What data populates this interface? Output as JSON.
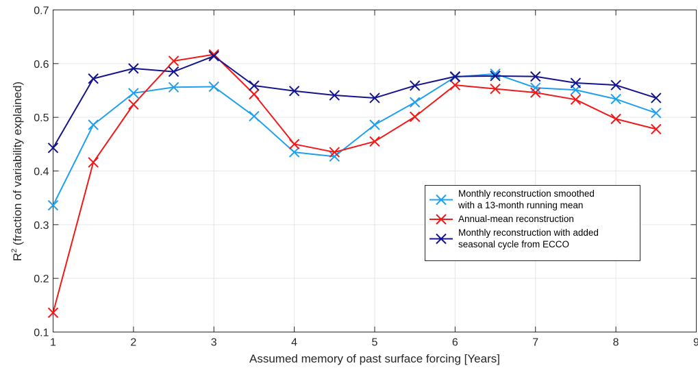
{
  "chart_data": {
    "type": "line",
    "title": "",
    "xlabel": "Assumed memory of past surface forcing [Years]",
    "ylabel": {
      "prefix": "R",
      "superscript": "2",
      "suffix": " (fraction of variability explained)"
    },
    "xlim": [
      1,
      9
    ],
    "ylim": [
      0.1,
      0.7
    ],
    "x_ticks": [
      1,
      2,
      3,
      4,
      5,
      6,
      7,
      8,
      9
    ],
    "x_tick_labels": [
      "1",
      "2",
      "3",
      "4",
      "5",
      "6",
      "7",
      "8",
      "9"
    ],
    "y_ticks": [
      0.1,
      0.2,
      0.3,
      0.4,
      0.5,
      0.6,
      0.7
    ],
    "y_tick_labels": [
      "0.1",
      "0.2",
      "0.3",
      "0.4",
      "0.5",
      "0.6",
      "0.7"
    ],
    "grid": true,
    "legend_position": "middle-right",
    "x": [
      1,
      1.5,
      2,
      2.5,
      3,
      3.5,
      4,
      4.5,
      5,
      5.5,
      6,
      6.5,
      7,
      7.5,
      8,
      8.5
    ],
    "series": [
      {
        "name_lines": [
          "Monthly reconstruction smoothed",
          "with a 13-month running mean"
        ],
        "color": "#1ea0ef",
        "marker": "x",
        "values": [
          0.336,
          0.486,
          0.545,
          0.556,
          0.557,
          0.502,
          0.435,
          0.427,
          0.486,
          0.528,
          0.575,
          0.581,
          0.555,
          0.551,
          0.534,
          0.508
        ]
      },
      {
        "name_lines": [
          "Annual-mean reconstruction"
        ],
        "color": "#f01818",
        "marker": "x",
        "values": [
          0.136,
          0.416,
          0.524,
          0.605,
          0.617,
          0.543,
          0.45,
          0.435,
          0.455,
          0.501,
          0.56,
          0.553,
          0.546,
          0.533,
          0.497,
          0.478
        ]
      },
      {
        "name_lines": [
          "Monthly reconstruction with added",
          "seasonal cycle from ECCO"
        ],
        "color": "#14148c",
        "marker": "x",
        "values": [
          0.443,
          0.572,
          0.591,
          0.585,
          0.614,
          0.559,
          0.549,
          0.541,
          0.536,
          0.559,
          0.576,
          0.577,
          0.576,
          0.564,
          0.56,
          0.536
        ]
      }
    ]
  }
}
